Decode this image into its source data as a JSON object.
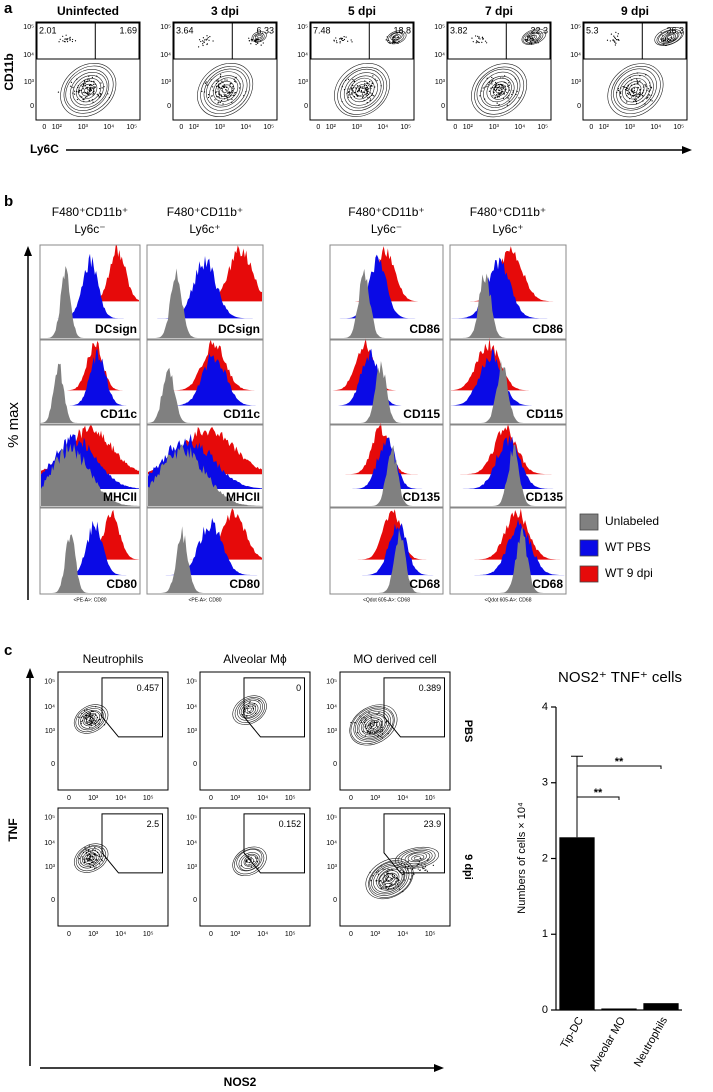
{
  "panel_a": {
    "label": "a",
    "y_axis_label": "CD11b",
    "x_axis_label": "Ly6C",
    "yticks": [
      "10⁵",
      "10⁴",
      "10³",
      "0"
    ],
    "xticks": [
      "0",
      "10²",
      "10³",
      "10⁴",
      "10⁵"
    ],
    "plots": [
      {
        "title": "Uninfected",
        "left_gate": "2.01",
        "right_gate": "1.69"
      },
      {
        "title": "3 dpi",
        "left_gate": "3.64",
        "right_gate": "6.33"
      },
      {
        "title": "5 dpi",
        "left_gate": "7.48",
        "right_gate": "18.8"
      },
      {
        "title": "7 dpi",
        "left_gate": "3.82",
        "right_gate": "22.3"
      },
      {
        "title": "9 dpi",
        "left_gate": "5.3",
        "right_gate": "36.3"
      }
    ]
  },
  "panel_b": {
    "label": "b",
    "y_axis_label": "% max",
    "columns": [
      {
        "line1": "F480⁺CD11b⁺",
        "line2": "Ly6c⁻"
      },
      {
        "line1": "F480⁺CD11b⁺",
        "line2": "Ly6c⁺"
      },
      {
        "line1": "F480⁺CD11b⁺",
        "line2": "Ly6c⁻"
      },
      {
        "line1": "F480⁺CD11b⁺",
        "line2": "Ly6c⁺"
      }
    ],
    "left_markers": [
      "DCsign",
      "CD11c",
      "MHCII",
      "CD80"
    ],
    "right_markers": [
      "CD86",
      "CD115",
      "CD135",
      "CD68"
    ],
    "left_axis_caption": "<PE-A>: CD80",
    "right_axis_caption": "<Qdot 605-A>: CD68",
    "legend": [
      {
        "name": "Unlabeled",
        "color": "#808080"
      },
      {
        "name": "WT PBS",
        "color": "#0a0ae6"
      },
      {
        "name": "WT 9 dpi",
        "color": "#e60a0a"
      }
    ]
  },
  "panel_c": {
    "label": "c",
    "y_axis_label": "TNF",
    "x_axis_label": "NOS2",
    "columns": [
      "Neutrophils",
      "Alveolar Mϕ",
      "MO derived cell"
    ],
    "rows": [
      {
        "label": "PBS",
        "gates": [
          "0.457",
          "0",
          "0.389"
        ]
      },
      {
        "label": "9 dpi",
        "gates": [
          "2.5",
          "0.152",
          "23.9"
        ]
      }
    ],
    "yticks": [
      "10⁵",
      "10⁴",
      "10³",
      "0"
    ],
    "xticks": [
      "0",
      "10³",
      "10⁴",
      "10⁵"
    ]
  },
  "chart_data": {
    "type": "bar",
    "title": "NOS2⁺ TNF⁺ cells",
    "y_label": "Numbers of cells × 10⁴",
    "categories": [
      "Tip-DC",
      "Alveolar MO",
      "Neutrophils"
    ],
    "values": [
      2.28,
      0.02,
      0.09
    ],
    "errors": [
      1.07,
      null,
      null
    ],
    "color": "#000000",
    "ylim": [
      0,
      4
    ],
    "yticks": [
      0,
      1,
      2,
      3,
      4
    ],
    "significance": [
      "**",
      "**"
    ]
  }
}
